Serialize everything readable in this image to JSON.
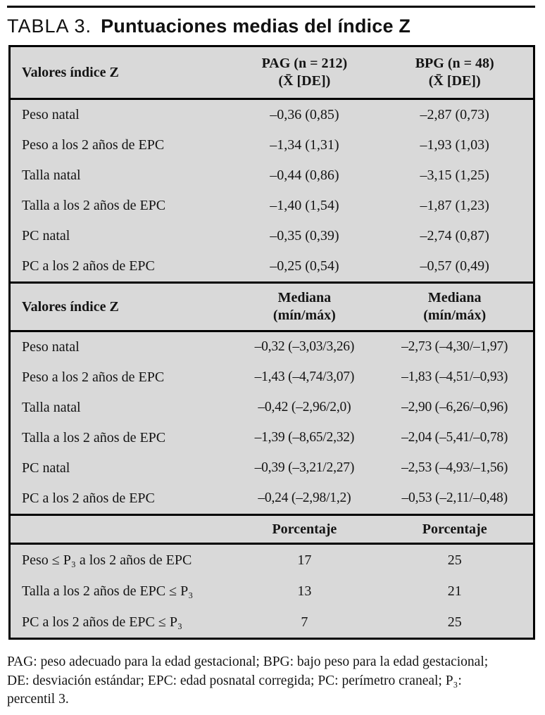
{
  "title": {
    "label": "TABLA 3.",
    "text": "Puntuaciones medias del índice Z"
  },
  "table": {
    "section_mean": {
      "header": {
        "col1": "Valores índice Z",
        "col2_line1": "PAG (n = 212)",
        "col2_line2": "(X̄ [DE])",
        "col3_line1": "BPG (n = 48)",
        "col3_line2": "(X̄ [DE])"
      },
      "rows": [
        {
          "label": "Peso natal",
          "pag": "–0,36 (0,85)",
          "bpg": "–2,87 (0,73)"
        },
        {
          "label": "Peso a los 2 años de EPC",
          "pag": "–1,34 (1,31)",
          "bpg": "–1,93 (1,03)"
        },
        {
          "label": "Talla natal",
          "pag": "–0,44 (0,86)",
          "bpg": "–3,15 (1,25)"
        },
        {
          "label": "Talla a los 2 años de EPC",
          "pag": "–1,40 (1,54)",
          "bpg": "–1,87 (1,23)"
        },
        {
          "label": "PC natal",
          "pag": "–0,35 (0,39)",
          "bpg": "–2,74 (0,87)"
        },
        {
          "label": "PC a los 2 años de EPC",
          "pag": "–0,25 (0,54)",
          "bpg": "–0,57 (0,49)"
        }
      ]
    },
    "section_median": {
      "header": {
        "col1": "Valores índice Z",
        "col2_line1": "Mediana",
        "col2_line2": "(mín/máx)",
        "col3_line1": "Mediana",
        "col3_line2": "(mín/máx)"
      },
      "rows": [
        {
          "label": "Peso natal",
          "pag": "–0,32 (–3,03/3,26)",
          "bpg": "–2,73 (–4,30/–1,97)"
        },
        {
          "label": "Peso a los 2 años de EPC",
          "pag": "–1,43 (–4,74/3,07)",
          "bpg": "–1,83 (–4,51/–0,93)"
        },
        {
          "label": "Talla natal",
          "pag": "–0,42 (–2,96/2,0)",
          "bpg": "–2,90 (–6,26/–0,96)"
        },
        {
          "label": "Talla a los 2 años de EPC",
          "pag": "–1,39 (–8,65/2,32)",
          "bpg": "–2,04 (–5,41/–0,78)"
        },
        {
          "label": "PC natal",
          "pag": "–0,39 (–3,21/2,27)",
          "bpg": "–2,53 (–4,93/–1,56)"
        },
        {
          "label": "PC a los 2 años de EPC",
          "pag": "–0,24 (–2,98/1,2)",
          "bpg": "–0,53 (–2,11/–0,48)"
        }
      ]
    },
    "section_percent": {
      "header": {
        "col1": "",
        "col2": "Porcentaje",
        "col3": "Porcentaje"
      },
      "rows": [
        {
          "label": "Peso ≤ P₃ a los 2 años de EPC",
          "pag": "17",
          "bpg": "25"
        },
        {
          "label": "Talla a los 2 años de EPC ≤ P₃",
          "pag": "13",
          "bpg": "21"
        },
        {
          "label": "PC a los 2 años de EPC ≤ P₃",
          "pag": "7",
          "bpg": "25"
        }
      ]
    }
  },
  "footnote": "PAG: peso adecuado para la edad gestacional; BPG: bajo peso para la edad gestacional; DE: desviación estándar; EPC: edad posnatal corregida; PC: perímetro craneal; P₃: percentil 3.",
  "colors": {
    "table_background": "#d9d9d9",
    "rule": "#000000",
    "text": "#141414"
  }
}
